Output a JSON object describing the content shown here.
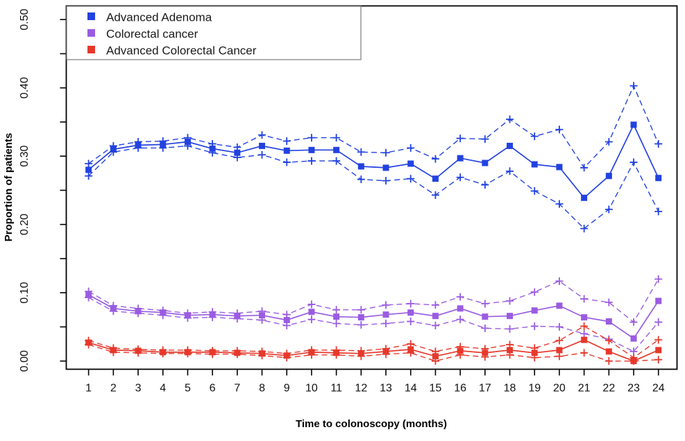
{
  "chart_data": {
    "type": "line",
    "title": "",
    "xlabel": "Time to colonoscopy (months)",
    "ylabel": "Proportion of patients",
    "x": [
      1,
      2,
      3,
      4,
      5,
      6,
      7,
      8,
      9,
      10,
      11,
      12,
      13,
      14,
      15,
      16,
      17,
      18,
      19,
      20,
      21,
      22,
      23,
      24
    ],
    "xticklabels": [
      "1",
      "2",
      "3",
      "4",
      "5",
      "6",
      "7",
      "8",
      "9",
      "10",
      "11",
      "12",
      "13",
      "14",
      "15",
      "16",
      "17",
      "18",
      "19",
      "20",
      "21",
      "22",
      "23",
      "24"
    ],
    "yticklabels": [
      "0.00",
      "0.10",
      "0.20",
      "0.30",
      "0.40",
      "0.50"
    ],
    "ytick_values": [
      0,
      0.1,
      0.2,
      0.3,
      0.4,
      0.5
    ],
    "ytick_minor_step": 0.05,
    "xlim": [
      0.1,
      24.75
    ],
    "ylim": [
      -0.012,
      0.52
    ],
    "grid": false,
    "legend_position": "top-left-inside",
    "series": [
      {
        "name": "Advanced Adenoma",
        "color": "#2242e0",
        "marker": "square",
        "ci_marker": "plus",
        "mean": [
          0.28,
          0.31,
          0.316,
          0.317,
          0.321,
          0.311,
          0.305,
          0.315,
          0.308,
          0.309,
          0.309,
          0.285,
          0.283,
          0.289,
          0.267,
          0.297,
          0.29,
          0.315,
          0.288,
          0.284,
          0.239,
          0.271,
          0.346,
          0.268
        ],
        "upper": [
          0.289,
          0.315,
          0.321,
          0.322,
          0.327,
          0.318,
          0.313,
          0.331,
          0.322,
          0.327,
          0.327,
          0.306,
          0.305,
          0.312,
          0.296,
          0.326,
          0.325,
          0.354,
          0.329,
          0.339,
          0.283,
          0.321,
          0.403,
          0.318
        ],
        "lower": [
          0.271,
          0.306,
          0.312,
          0.312,
          0.315,
          0.305,
          0.298,
          0.302,
          0.291,
          0.293,
          0.293,
          0.266,
          0.264,
          0.267,
          0.243,
          0.269,
          0.258,
          0.278,
          0.249,
          0.23,
          0.194,
          0.222,
          0.291,
          0.219
        ]
      },
      {
        "name": "Colorectal cancer",
        "color": "#9a5ce1",
        "marker": "square",
        "ci_marker": "plus",
        "mean": [
          0.097,
          0.077,
          0.073,
          0.071,
          0.067,
          0.068,
          0.066,
          0.067,
          0.06,
          0.072,
          0.065,
          0.064,
          0.068,
          0.071,
          0.066,
          0.077,
          0.065,
          0.066,
          0.074,
          0.081,
          0.064,
          0.058,
          0.033,
          0.088
        ],
        "upper": [
          0.102,
          0.081,
          0.077,
          0.074,
          0.07,
          0.072,
          0.07,
          0.073,
          0.068,
          0.083,
          0.075,
          0.075,
          0.082,
          0.084,
          0.082,
          0.094,
          0.084,
          0.088,
          0.101,
          0.117,
          0.091,
          0.086,
          0.057,
          0.12
        ],
        "lower": [
          0.093,
          0.073,
          0.07,
          0.067,
          0.063,
          0.064,
          0.062,
          0.06,
          0.052,
          0.061,
          0.055,
          0.053,
          0.055,
          0.058,
          0.052,
          0.061,
          0.048,
          0.047,
          0.051,
          0.05,
          0.04,
          0.032,
          0.014,
          0.057
        ]
      },
      {
        "name": "Advanced Colorectal Cancer",
        "color": "#e6392c",
        "marker": "square",
        "ci_marker": "plus",
        "mean": [
          0.027,
          0.016,
          0.015,
          0.013,
          0.013,
          0.013,
          0.012,
          0.011,
          0.008,
          0.013,
          0.012,
          0.011,
          0.014,
          0.017,
          0.007,
          0.015,
          0.012,
          0.016,
          0.012,
          0.016,
          0.031,
          0.014,
          0.0,
          0.016
        ],
        "upper": [
          0.03,
          0.019,
          0.017,
          0.016,
          0.016,
          0.015,
          0.015,
          0.014,
          0.011,
          0.016,
          0.016,
          0.015,
          0.018,
          0.025,
          0.014,
          0.021,
          0.018,
          0.024,
          0.019,
          0.03,
          0.051,
          0.03,
          0.005,
          0.031
        ],
        "lower": [
          0.024,
          0.013,
          0.012,
          0.011,
          0.011,
          0.01,
          0.01,
          0.008,
          0.005,
          0.009,
          0.009,
          0.007,
          0.01,
          0.012,
          0.0,
          0.009,
          0.006,
          0.009,
          0.005,
          0.007,
          0.012,
          0.0,
          0.0,
          0.002
        ]
      }
    ]
  }
}
